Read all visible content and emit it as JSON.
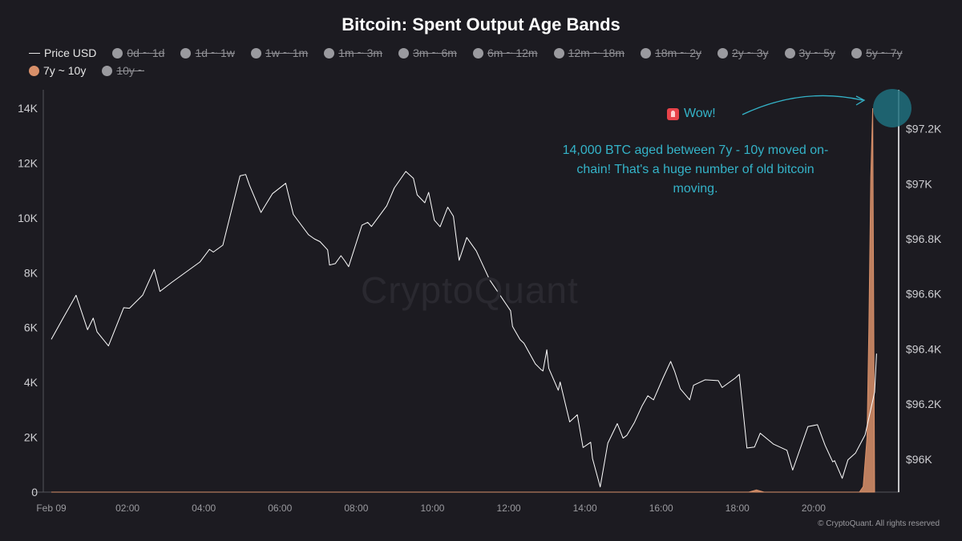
{
  "title": "Bitcoin: Spent Output Age Bands",
  "legend": [
    {
      "label": "Price USD",
      "marker": "line",
      "active": true
    },
    {
      "label": "0d ~ 1d",
      "marker": "dot",
      "active": false
    },
    {
      "label": "1d ~ 1w",
      "marker": "dot",
      "active": false
    },
    {
      "label": "1w ~ 1m",
      "marker": "dot",
      "active": false
    },
    {
      "label": "1m ~ 3m",
      "marker": "dot",
      "active": false
    },
    {
      "label": "3m ~ 6m",
      "marker": "dot",
      "active": false
    },
    {
      "label": "6m ~ 12m",
      "marker": "dot",
      "active": false
    },
    {
      "label": "12m ~ 18m",
      "marker": "dot",
      "active": false
    },
    {
      "label": "18m ~ 2y",
      "marker": "dot",
      "active": false
    },
    {
      "label": "2y ~ 3y",
      "marker": "dot",
      "active": false
    },
    {
      "label": "3y ~ 5y",
      "marker": "dot",
      "active": false
    },
    {
      "label": "5y ~ 7y",
      "marker": "dot",
      "active": false
    },
    {
      "label": "7y ~ 10y",
      "marker": "dot",
      "active": true,
      "color": "#d9906a"
    },
    {
      "label": "10y ~",
      "marker": "dot",
      "active": false
    }
  ],
  "annotation": {
    "wow": "Wow!",
    "text": "14,000 BTC aged between 7y - 10y moved on-chain! That's a huge number of old bitcoin moving."
  },
  "watermark": "CryptoQuant",
  "footer": "© CryptoQuant. All rights reserved",
  "colors": {
    "background": "#1c1b21",
    "price_line": "#ffffff",
    "band_7y_10y": "#d9906a",
    "annotation": "#34b3c8"
  },
  "chart_data": {
    "type": "line",
    "title": "Bitcoin: Spent Output Age Bands",
    "x_tick_labels": [
      "Feb 09",
      "02:00",
      "04:00",
      "06:00",
      "08:00",
      "10:00",
      "12:00",
      "14:00",
      "16:00",
      "18:00",
      "20:00"
    ],
    "x_range_hours": [
      0,
      22
    ],
    "y_left": {
      "ticks": [
        "0",
        "2K",
        "4K",
        "6K",
        "8K",
        "10K",
        "12K",
        "14K"
      ],
      "range": [
        0,
        14000
      ]
    },
    "y_right": {
      "ticks": [
        "$96K",
        "$96.2K",
        "$96.4K",
        "$96.6K",
        "$96.8K",
        "$97K",
        "$97.2K"
      ],
      "range": [
        95880,
        97330
      ]
    },
    "grid": false,
    "legend_position": "top-left",
    "series": [
      {
        "name": "Price USD",
        "axis": "right",
        "x": [
          0.0,
          0.3,
          0.65,
          0.95,
          1.1,
          1.2,
          1.5,
          1.9,
          2.05,
          2.4,
          2.7,
          2.85,
          3.15,
          3.9,
          4.15,
          4.25,
          4.5,
          4.95,
          5.1,
          5.2,
          5.5,
          5.8,
          6.15,
          6.35,
          6.75,
          6.9,
          7.05,
          7.25,
          7.3,
          7.45,
          7.6,
          7.7,
          7.8,
          8.15,
          8.3,
          8.4,
          8.8,
          9.0,
          9.3,
          9.5,
          9.6,
          9.8,
          9.9,
          10.05,
          10.2,
          10.4,
          10.55,
          10.7,
          10.9,
          11.15,
          11.5,
          12.05,
          12.1,
          12.3,
          12.4,
          12.7,
          12.85,
          12.9,
          13.0,
          13.05,
          13.3,
          13.35,
          13.6,
          13.8,
          13.95,
          14.15,
          14.2,
          14.4,
          14.6,
          14.85,
          15.0,
          15.1,
          15.3,
          15.5,
          15.65,
          15.8,
          16.05,
          16.25,
          16.35,
          16.5,
          16.75,
          16.85,
          17.15,
          17.5,
          17.6,
          17.95,
          18.05,
          18.25,
          18.45,
          18.6,
          18.95,
          19.3,
          19.45,
          19.85,
          20.1,
          20.3,
          20.5,
          20.55,
          20.75,
          20.9,
          21.1,
          21.35,
          21.6,
          21.65
        ],
        "y": [
          96435,
          96510,
          96595,
          96470,
          96512,
          96462,
          96411,
          96550,
          96548,
          96596,
          96689,
          96609,
          96641,
          96716,
          96762,
          96752,
          96777,
          97029,
          97034,
          96995,
          96896,
          96964,
          97002,
          96889,
          96815,
          96800,
          96790,
          96760,
          96705,
          96710,
          96739,
          96720,
          96699,
          96850,
          96860,
          96845,
          96920,
          96985,
          97045,
          97020,
          96960,
          96931,
          96969,
          96868,
          96844,
          96915,
          96882,
          96722,
          96805,
          96756,
          96651,
          96539,
          96482,
          96434,
          96421,
          96346,
          96325,
          96320,
          96397,
          96330,
          96250,
          96280,
          96135,
          96161,
          96042,
          96061,
          96002,
          95899,
          96058,
          96129,
          96076,
          96086,
          96133,
          96194,
          96230,
          96215,
          96295,
          96355,
          96320,
          96256,
          96215,
          96268,
          96288,
          96285,
          96260,
          96295,
          96308,
          96040,
          96044,
          96094,
          96054,
          96032,
          95960,
          96118,
          96125,
          96050,
          95990,
          95994,
          95930,
          95997,
          96022,
          96088,
          96243,
          96383
        ]
      },
      {
        "name": "7y ~ 10y",
        "axis": "left",
        "x": [
          0,
          18.3,
          18.5,
          18.7,
          21.2,
          21.3,
          21.4,
          21.45,
          21.5,
          21.55,
          21.6
        ],
        "y": [
          0,
          0,
          80,
          0,
          0,
          200,
          2000,
          6000,
          11500,
          14000,
          0
        ]
      }
    ]
  }
}
